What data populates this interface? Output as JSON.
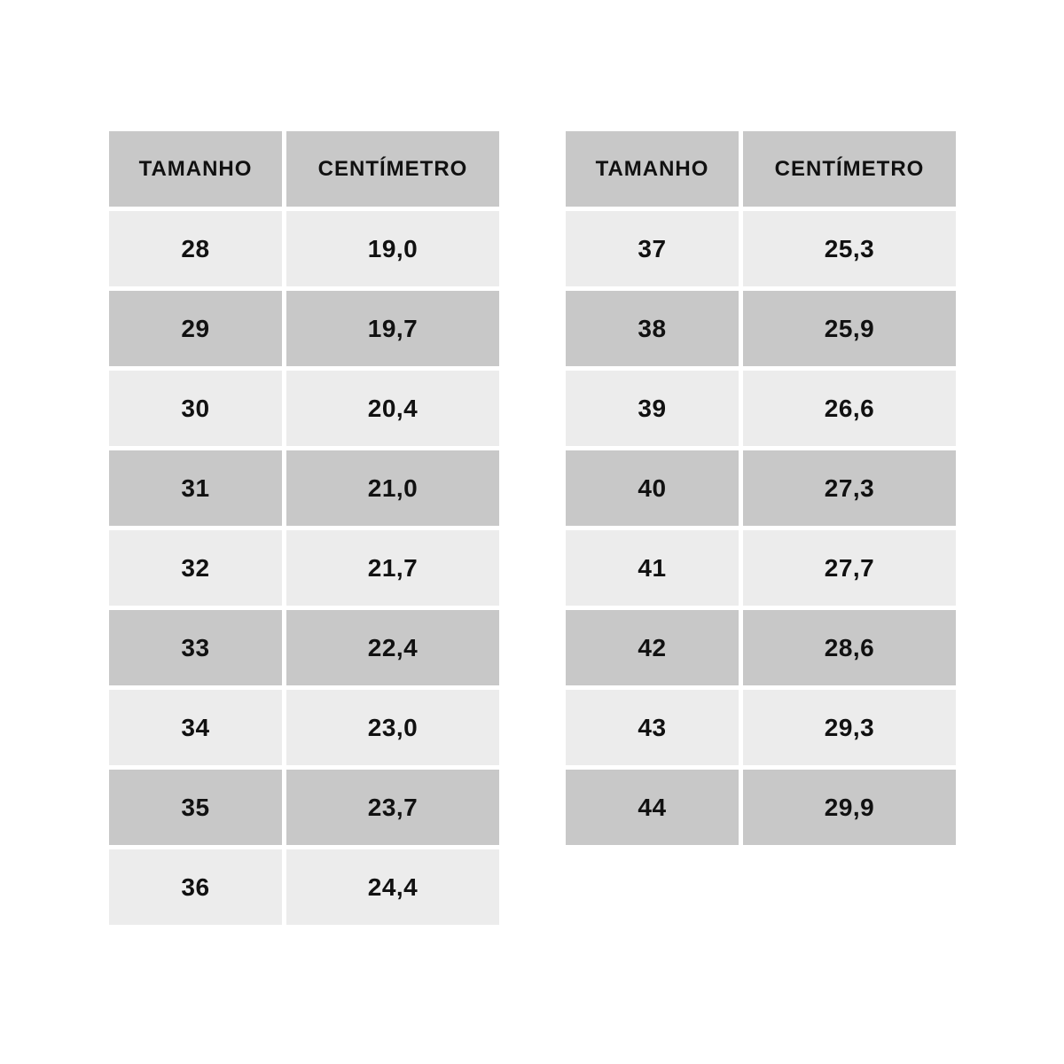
{
  "colors": {
    "page_bg": "#ffffff",
    "header_bg": "#c8c8c8",
    "row_light": "#ececec",
    "row_dark": "#c8c8c8",
    "text": "#111111"
  },
  "tables": [
    {
      "headers": {
        "size": "TAMANHO",
        "cm": "CENTÍMETRO"
      },
      "rows": [
        {
          "size": "28",
          "cm": "19,0"
        },
        {
          "size": "29",
          "cm": "19,7"
        },
        {
          "size": "30",
          "cm": "20,4"
        },
        {
          "size": "31",
          "cm": "21,0"
        },
        {
          "size": "32",
          "cm": "21,7"
        },
        {
          "size": "33",
          "cm": "22,4"
        },
        {
          "size": "34",
          "cm": "23,0"
        },
        {
          "size": "35",
          "cm": "23,7"
        },
        {
          "size": "36",
          "cm": "24,4"
        }
      ]
    },
    {
      "headers": {
        "size": "TAMANHO",
        "cm": "CENTÍMETRO"
      },
      "rows": [
        {
          "size": "37",
          "cm": "25,3"
        },
        {
          "size": "38",
          "cm": "25,9"
        },
        {
          "size": "39",
          "cm": "26,6"
        },
        {
          "size": "40",
          "cm": "27,3"
        },
        {
          "size": "41",
          "cm": "27,7"
        },
        {
          "size": "42",
          "cm": "28,6"
        },
        {
          "size": "43",
          "cm": "29,3"
        },
        {
          "size": "44",
          "cm": "29,9"
        }
      ]
    }
  ],
  "chart_data": [
    {
      "type": "table",
      "title": "",
      "columns": [
        "TAMANHO",
        "CENTÍMETRO"
      ],
      "rows": [
        [
          "28",
          "19,0"
        ],
        [
          "29",
          "19,7"
        ],
        [
          "30",
          "20,4"
        ],
        [
          "31",
          "21,0"
        ],
        [
          "32",
          "21,7"
        ],
        [
          "33",
          "22,4"
        ],
        [
          "34",
          "23,0"
        ],
        [
          "35",
          "23,7"
        ],
        [
          "36",
          "24,4"
        ]
      ]
    },
    {
      "type": "table",
      "title": "",
      "columns": [
        "TAMANHO",
        "CENTÍMETRO"
      ],
      "rows": [
        [
          "37",
          "25,3"
        ],
        [
          "38",
          "25,9"
        ],
        [
          "39",
          "26,6"
        ],
        [
          "40",
          "27,3"
        ],
        [
          "41",
          "27,7"
        ],
        [
          "42",
          "28,6"
        ],
        [
          "43",
          "29,3"
        ],
        [
          "44",
          "29,9"
        ]
      ]
    }
  ]
}
